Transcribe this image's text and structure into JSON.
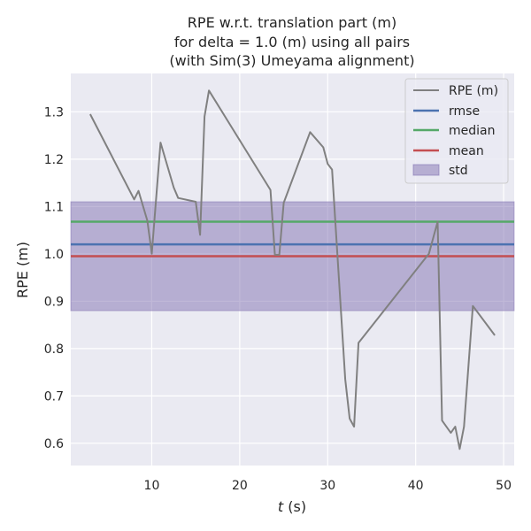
{
  "chart_data": {
    "type": "line",
    "title_lines": [
      "RPE w.r.t. translation part (m)",
      "for delta = 1.0 (m) using all pairs",
      "(with Sim(3) Umeyama alignment)"
    ],
    "xlabel_italic": "t",
    "xlabel_rest": " (s)",
    "ylabel": "RPE (m)",
    "xlim": [
      0.8,
      51.2
    ],
    "ylim": [
      0.553,
      1.381
    ],
    "xticks": [
      10,
      20,
      30,
      40,
      50
    ],
    "yticks": [
      0.6,
      0.7,
      0.8,
      0.9,
      1.0,
      1.1,
      1.2,
      1.3
    ],
    "ytick_labels": [
      "0.6",
      "0.7",
      "0.8",
      "0.9",
      "1.0",
      "1.1",
      "1.2",
      "1.3"
    ],
    "grid": true,
    "legend_position": "top-right",
    "series": [
      {
        "name": "RPE (m)",
        "color": "#808080",
        "x": [
          3.0,
          8.0,
          8.5,
          9.5,
          10.0,
          11.0,
          12.5,
          13.0,
          15.0,
          15.5,
          16.0,
          16.5,
          23.5,
          24.0,
          24.5,
          25.0,
          28.0,
          29.5,
          30.0,
          30.5,
          32.0,
          32.5,
          33.0,
          33.5,
          41.5,
          42.5,
          43.0,
          44.0,
          44.5,
          45.0,
          45.5,
          46.5,
          49.0
        ],
        "y": [
          1.295,
          1.115,
          1.133,
          1.07,
          1.0,
          1.235,
          1.14,
          1.118,
          1.11,
          1.04,
          1.29,
          1.345,
          1.135,
          0.998,
          0.998,
          1.108,
          1.257,
          1.225,
          1.19,
          1.178,
          0.735,
          0.652,
          0.635,
          0.812,
          1.0,
          1.068,
          0.648,
          0.622,
          0.635,
          0.588,
          0.635,
          0.89,
          0.828
        ]
      }
    ],
    "stats": {
      "rmse": {
        "name": "rmse",
        "value": 1.02,
        "color": "#4c72b0"
      },
      "median": {
        "name": "median",
        "value": 1.068,
        "color": "#55a868"
      },
      "mean": {
        "name": "mean",
        "value": 0.995,
        "color": "#c44e52"
      },
      "std": {
        "name": "std",
        "lower": 0.88,
        "upper": 1.11,
        "color": "#8172b2"
      }
    },
    "legend": [
      "RPE (m)",
      "rmse",
      "median",
      "mean",
      "std"
    ]
  }
}
